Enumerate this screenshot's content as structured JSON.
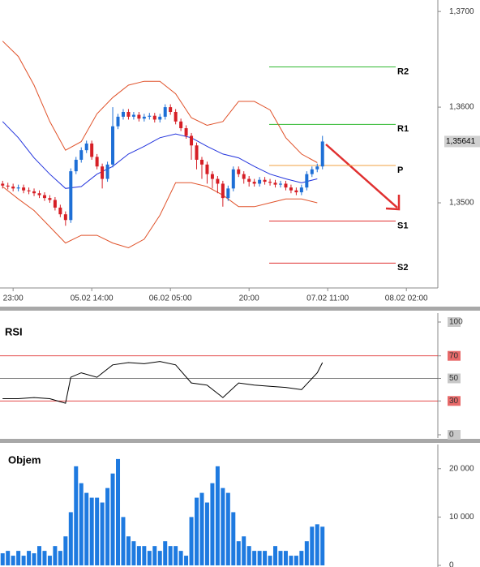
{
  "chart_data": [
    {
      "type": "candlestick",
      "xlim": [
        -0.5,
        83
      ],
      "xticks": [
        {
          "value": 2,
          "label": "23:00"
        },
        {
          "value": 17,
          "label": "05.02 14:00"
        },
        {
          "value": 32,
          "label": "06.02 05:00"
        },
        {
          "value": 47,
          "label": "20:00"
        },
        {
          "value": 62,
          "label": "07.02 11:00"
        },
        {
          "value": 77,
          "label": "08.02 02:00"
        }
      ],
      "ylim": [
        1.3411,
        1.3712
      ],
      "yticks": [
        {
          "value": 1.35,
          "label": "1,3500"
        },
        {
          "value": 1.36,
          "label": "1,3600"
        },
        {
          "value": 1.37,
          "label": "1,3700"
        }
      ],
      "up_color": "#1e6fd6",
      "down_color": "#d61f26",
      "open": [
        1.352,
        1.3518,
        1.3517,
        1.3515,
        1.3516,
        1.3513,
        1.3512,
        1.351,
        1.3508,
        1.3505,
        1.3503,
        1.3495,
        1.3488,
        1.3482,
        1.3533,
        1.3545,
        1.3555,
        1.3562,
        1.3548,
        1.3538,
        1.3525,
        1.354,
        1.358,
        1.359,
        1.3595,
        1.359,
        1.3592,
        1.3588,
        1.359,
        1.3591,
        1.3587,
        1.359,
        1.36,
        1.3595,
        1.3585,
        1.3578,
        1.357,
        1.356,
        1.3545,
        1.354,
        1.353,
        1.3525,
        1.352,
        1.3505,
        1.3515,
        1.3535,
        1.353,
        1.3525,
        1.3522,
        1.352,
        1.3524,
        1.3522,
        1.3521,
        1.3519,
        1.352,
        1.3516,
        1.3513,
        1.3511,
        1.3516,
        1.353,
        1.3535,
        1.3538
      ],
      "high": [
        1.3523,
        1.3521,
        1.352,
        1.3519,
        1.3519,
        1.3516,
        1.3515,
        1.3513,
        1.3511,
        1.3508,
        1.3506,
        1.3498,
        1.3491,
        1.3536,
        1.3548,
        1.3558,
        1.3565,
        1.3565,
        1.3551,
        1.3541,
        1.3543,
        1.36,
        1.3593,
        1.3598,
        1.3598,
        1.3595,
        1.3595,
        1.3593,
        1.3594,
        1.3594,
        1.3593,
        1.3603,
        1.3603,
        1.3598,
        1.3588,
        1.3581,
        1.3573,
        1.3563,
        1.3548,
        1.3543,
        1.3533,
        1.3528,
        1.3523,
        1.3518,
        1.3538,
        1.3538,
        1.3533,
        1.3528,
        1.3525,
        1.3527,
        1.3527,
        1.3525,
        1.3524,
        1.3523,
        1.3523,
        1.3519,
        1.3516,
        1.3519,
        1.3533,
        1.3538,
        1.3541,
        1.357
      ],
      "low": [
        1.3515,
        1.3514,
        1.3512,
        1.3512,
        1.351,
        1.3509,
        1.3507,
        1.3505,
        1.3502,
        1.35,
        1.3492,
        1.3485,
        1.3476,
        1.3479,
        1.353,
        1.3542,
        1.3552,
        1.3545,
        1.3535,
        1.3515,
        1.3522,
        1.3537,
        1.3577,
        1.3587,
        1.3587,
        1.3587,
        1.3585,
        1.3585,
        1.3587,
        1.3584,
        1.3584,
        1.3587,
        1.3592,
        1.3582,
        1.3575,
        1.3567,
        1.3545,
        1.3535,
        1.3525,
        1.352,
        1.3515,
        1.351,
        1.3496,
        1.3502,
        1.3512,
        1.3527,
        1.352,
        1.3517,
        1.3517,
        1.3517,
        1.3519,
        1.3518,
        1.3516,
        1.3516,
        1.3513,
        1.351,
        1.3508,
        1.3508,
        1.3513,
        1.3527,
        1.3532,
        1.3535
      ],
      "close": [
        1.3518,
        1.3517,
        1.3515,
        1.3516,
        1.3513,
        1.3512,
        1.351,
        1.3508,
        1.3505,
        1.3503,
        1.3495,
        1.3488,
        1.3482,
        1.3533,
        1.3545,
        1.3555,
        1.3562,
        1.3548,
        1.3538,
        1.3525,
        1.354,
        1.358,
        1.359,
        1.3595,
        1.359,
        1.3592,
        1.3588,
        1.359,
        1.3591,
        1.3587,
        1.359,
        1.36,
        1.3595,
        1.3585,
        1.3578,
        1.357,
        1.356,
        1.3545,
        1.354,
        1.353,
        1.3525,
        1.352,
        1.3505,
        1.3515,
        1.3535,
        1.353,
        1.3525,
        1.3522,
        1.352,
        1.3524,
        1.3522,
        1.3521,
        1.3519,
        1.352,
        1.3516,
        1.3513,
        1.3511,
        1.3516,
        1.353,
        1.3535,
        1.3538,
        1.35641
      ],
      "overlays": [
        {
          "color": "#e0522a",
          "x": [
            0,
            3,
            6,
            9,
            12,
            15,
            18,
            21,
            24,
            27,
            30,
            33,
            36,
            39,
            42,
            45,
            48,
            51,
            54,
            57,
            60
          ],
          "values": [
            1.3669,
            1.3653,
            1.3623,
            1.3585,
            1.3555,
            1.3564,
            1.3593,
            1.361,
            1.3623,
            1.3627,
            1.3627,
            1.3614,
            1.3589,
            1.3581,
            1.3585,
            1.3606,
            1.3606,
            1.3597,
            1.3568,
            1.3551,
            1.3542
          ]
        },
        {
          "color": "#e0522a",
          "x": [
            0,
            3,
            6,
            9,
            12,
            15,
            18,
            21,
            24,
            27,
            30,
            33,
            36,
            39,
            42,
            45,
            48,
            51,
            54,
            57,
            60
          ],
          "values": [
            1.3517,
            1.3504,
            1.3492,
            1.3475,
            1.3458,
            1.3466,
            1.3466,
            1.3458,
            1.3453,
            1.3462,
            1.3487,
            1.3521,
            1.3521,
            1.3517,
            1.3508,
            1.3496,
            1.3496,
            1.35,
            1.3504,
            1.3504,
            1.35
          ]
        },
        {
          "color": "#2233dd",
          "x": [
            0,
            3,
            6,
            9,
            12,
            15,
            18,
            21,
            24,
            27,
            30,
            33,
            36,
            39,
            42,
            45,
            48,
            51,
            54,
            57,
            60
          ],
          "values": [
            1.3585,
            1.3568,
            1.3547,
            1.353,
            1.3515,
            1.3517,
            1.353,
            1.3538,
            1.3551,
            1.3559,
            1.3568,
            1.3572,
            1.3568,
            1.3559,
            1.3551,
            1.3547,
            1.3538,
            1.353,
            1.3525,
            1.3521,
            1.3525
          ]
        }
      ],
      "levels": [
        {
          "label": "R2",
          "value": 1.3642,
          "color": "#2fb82f"
        },
        {
          "label": "R1",
          "value": 1.3582,
          "color": "#2fb82f"
        },
        {
          "label": "P",
          "value": 1.3539,
          "color": "#f0a040"
        },
        {
          "label": "S1",
          "value": 1.3481,
          "color": "#e03030"
        },
        {
          "label": "S2",
          "value": 1.3437,
          "color": "#e03030"
        }
      ],
      "last_price": {
        "value": 1.35641,
        "label": "1,35641"
      }
    },
    {
      "type": "line",
      "title": "RSI",
      "xlim": [
        -0.5,
        83
      ],
      "ylim": [
        0,
        100
      ],
      "yticks": [
        0,
        30,
        50,
        70,
        100
      ],
      "color": "#000000",
      "x": [
        0,
        3,
        6,
        9,
        12,
        13,
        15,
        18,
        21,
        24,
        27,
        30,
        33,
        36,
        39,
        42,
        45,
        48,
        51,
        54,
        57,
        60,
        61
      ],
      "values": [
        32,
        32,
        33,
        32,
        28,
        51,
        55,
        51,
        62,
        64,
        63,
        65,
        62,
        46,
        44,
        33,
        46,
        44,
        43,
        42,
        40,
        55,
        64
      ],
      "levels": [
        {
          "value": 70,
          "color": "#e03030"
        },
        {
          "value": 50,
          "color": "#555555"
        },
        {
          "value": 30,
          "color": "#e03030"
        }
      ]
    },
    {
      "type": "bar",
      "title": "Objem",
      "xlim": [
        -0.5,
        83
      ],
      "ylim": [
        0,
        25000
      ],
      "yticks": [
        0,
        {
          "value": 10000,
          "label": "10 000"
        },
        {
          "value": 20000,
          "label": "20 000"
        }
      ],
      "color": "#1e7ae0",
      "values": [
        2500,
        3000,
        2000,
        3000,
        2000,
        3000,
        2500,
        4000,
        3000,
        2000,
        4000,
        3000,
        6000,
        11000,
        20500,
        17000,
        15000,
        14000,
        14000,
        13000,
        16000,
        19000,
        22000,
        10000,
        6000,
        5000,
        4000,
        4000,
        3000,
        4000,
        3000,
        5000,
        4000,
        4000,
        3000,
        2000,
        10000,
        14000,
        15000,
        13000,
        17000,
        20500,
        16000,
        15000,
        11000,
        5000,
        6000,
        4000,
        3000,
        3000,
        3000,
        2000,
        4000,
        3000,
        3000,
        2000,
        2000,
        3000,
        5000,
        8000,
        8500,
        8000
      ]
    }
  ]
}
